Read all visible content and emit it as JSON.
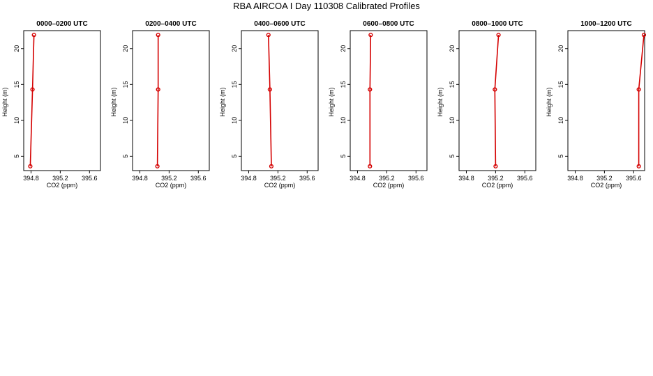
{
  "title": "RBA AIRCOA I  Day 110308  Calibrated Profiles",
  "colors": {
    "series": "#d40000",
    "axis": "#000000"
  },
  "chart_data": [
    {
      "type": "line",
      "title": "0000–0200 UTC",
      "xlabel": "CO2 (ppm)",
      "ylabel": "Height (m)",
      "xlim": [
        394.7,
        395.75
      ],
      "ylim": [
        3,
        22.5
      ],
      "xticks": [
        "394.8",
        "395.2",
        "395.6"
      ],
      "xtick_values": [
        394.8,
        395.2,
        395.6
      ],
      "yticks": [
        "5",
        "10",
        "15",
        "20"
      ],
      "ytick_values": [
        5,
        10,
        15,
        20
      ],
      "grid": false,
      "series": [
        {
          "x": [
            394.79,
            394.82,
            394.84
          ],
          "y": [
            3.6,
            14.3,
            21.9
          ]
        }
      ]
    },
    {
      "type": "line",
      "title": "0200–0400 UTC",
      "xlabel": "CO2 (ppm)",
      "ylabel": "Height (m)",
      "xlim": [
        394.7,
        395.75
      ],
      "ylim": [
        3,
        22.5
      ],
      "xticks": [
        "394.8",
        "395.2",
        "395.6"
      ],
      "xtick_values": [
        394.8,
        395.2,
        395.6
      ],
      "yticks": [
        "5",
        "10",
        "15",
        "20"
      ],
      "ytick_values": [
        5,
        10,
        15,
        20
      ],
      "grid": false,
      "series": [
        {
          "x": [
            395.04,
            395.05,
            395.05
          ],
          "y": [
            3.6,
            14.3,
            21.9
          ]
        }
      ]
    },
    {
      "type": "line",
      "title": "0400–0600 UTC",
      "xlabel": "CO2 (ppm)",
      "ylabel": "Height (m)",
      "xlim": [
        394.7,
        395.75
      ],
      "ylim": [
        3,
        22.5
      ],
      "xticks": [
        "394.8",
        "395.2",
        "395.6"
      ],
      "xtick_values": [
        394.8,
        395.2,
        395.6
      ],
      "yticks": [
        "5",
        "10",
        "15",
        "20"
      ],
      "ytick_values": [
        5,
        10,
        15,
        20
      ],
      "grid": false,
      "series": [
        {
          "x": [
            395.11,
            395.09,
            395.07
          ],
          "y": [
            3.6,
            14.3,
            21.9
          ]
        }
      ]
    },
    {
      "type": "line",
      "title": "0600–0800 UTC",
      "xlabel": "CO2 (ppm)",
      "ylabel": "Height (m)",
      "xlim": [
        394.7,
        395.75
      ],
      "ylim": [
        3,
        22.5
      ],
      "xticks": [
        "394.8",
        "395.2",
        "395.6"
      ],
      "xtick_values": [
        394.8,
        395.2,
        395.6
      ],
      "yticks": [
        "5",
        "10",
        "15",
        "20"
      ],
      "ytick_values": [
        5,
        10,
        15,
        20
      ],
      "grid": false,
      "series": [
        {
          "x": [
            394.97,
            394.97,
            394.98
          ],
          "y": [
            3.6,
            14.3,
            21.9
          ]
        }
      ]
    },
    {
      "type": "line",
      "title": "0800–1000 UTC",
      "xlabel": "CO2 (ppm)",
      "ylabel": "Height (m)",
      "xlim": [
        394.7,
        395.75
      ],
      "ylim": [
        3,
        22.5
      ],
      "xticks": [
        "394.8",
        "395.2",
        "395.6"
      ],
      "xtick_values": [
        394.8,
        395.2,
        395.6
      ],
      "yticks": [
        "5",
        "10",
        "15",
        "20"
      ],
      "ytick_values": [
        5,
        10,
        15,
        20
      ],
      "grid": false,
      "series": [
        {
          "x": [
            395.2,
            395.19,
            395.24
          ],
          "y": [
            3.6,
            14.3,
            21.9
          ]
        }
      ]
    },
    {
      "type": "line",
      "title": "1000–1200 UTC",
      "xlabel": "CO2 (ppm)",
      "ylabel": "Height (m)",
      "xlim": [
        394.7,
        395.75
      ],
      "ylim": [
        3,
        22.5
      ],
      "xticks": [
        "394.8",
        "395.2",
        "395.6"
      ],
      "xtick_values": [
        394.8,
        395.2,
        395.6
      ],
      "yticks": [
        "5",
        "10",
        "15",
        "20"
      ],
      "ytick_values": [
        5,
        10,
        15,
        20
      ],
      "grid": false,
      "series": [
        {
          "x": [
            395.67,
            395.67,
            395.74
          ],
          "y": [
            3.6,
            14.3,
            21.9
          ]
        }
      ]
    }
  ]
}
